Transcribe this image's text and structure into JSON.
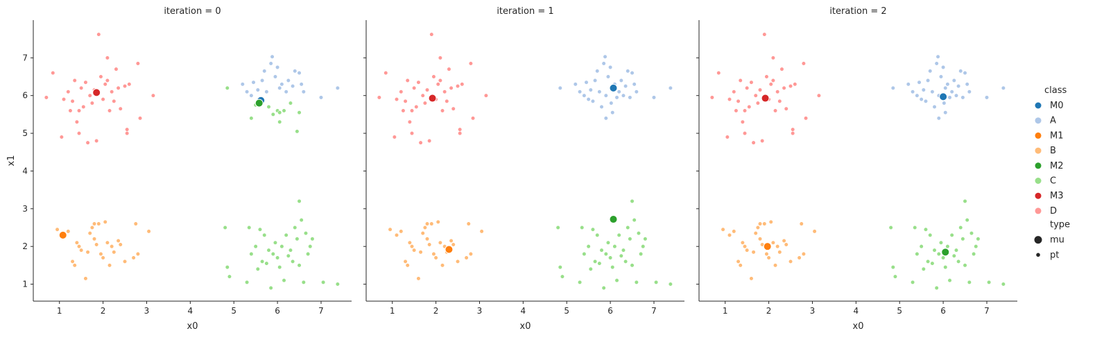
{
  "chart_data": {
    "type": "scatter",
    "xlabel": "x0",
    "ylabel": "x1",
    "xlim": [
      0.4,
      7.7
    ],
    "ylim": [
      0.55,
      8.0
    ],
    "xticks": [
      1,
      2,
      3,
      4,
      5,
      6,
      7
    ],
    "yticks": [
      1,
      2,
      3,
      4,
      5,
      6,
      7
    ],
    "grid": false,
    "legend_placement": "right",
    "colors": {
      "M0": "#1f77b4",
      "A": "#aec7e8",
      "M1": "#ff7f0e",
      "B": "#ffbb78",
      "M2": "#2ca02c",
      "C": "#98df8a",
      "M3": "#d62728",
      "D": "#ff9896"
    },
    "legend": {
      "class_title": "class",
      "classes": [
        "M0",
        "A",
        "M1",
        "B",
        "M2",
        "C",
        "M3",
        "D"
      ],
      "type_title": "type",
      "types": [
        "mu",
        "pt"
      ]
    },
    "points": {
      "A": [
        [
          5.2,
          6.3
        ],
        [
          5.3,
          6.1
        ],
        [
          5.4,
          6.0
        ],
        [
          5.45,
          6.35
        ],
        [
          5.5,
          5.9
        ],
        [
          5.55,
          6.15
        ],
        [
          5.6,
          5.85
        ],
        [
          5.65,
          6.4
        ],
        [
          5.7,
          6.65
        ],
        [
          5.75,
          6.1
        ],
        [
          5.8,
          5.7
        ],
        [
          5.85,
          6.85
        ],
        [
          5.88,
          7.03
        ],
        [
          5.9,
          6.0
        ],
        [
          5.95,
          6.5
        ],
        [
          6.0,
          6.75
        ],
        [
          6.02,
          5.8
        ],
        [
          6.05,
          6.2
        ],
        [
          6.1,
          6.3
        ],
        [
          6.15,
          5.95
        ],
        [
          6.2,
          6.1
        ],
        [
          6.25,
          6.4
        ],
        [
          6.3,
          6.0
        ],
        [
          6.35,
          6.25
        ],
        [
          6.4,
          6.65
        ],
        [
          6.45,
          5.95
        ],
        [
          6.5,
          6.6
        ],
        [
          6.55,
          6.3
        ],
        [
          6.6,
          6.1
        ],
        [
          7.0,
          5.95
        ],
        [
          7.38,
          6.2
        ],
        [
          5.9,
          5.4
        ],
        [
          6.05,
          5.55
        ],
        [
          4.85,
          6.2
        ]
      ],
      "B": [
        [
          0.95,
          2.45
        ],
        [
          1.1,
          2.3
        ],
        [
          1.2,
          2.4
        ],
        [
          1.3,
          1.6
        ],
        [
          1.35,
          1.5
        ],
        [
          1.4,
          2.1
        ],
        [
          1.45,
          2.0
        ],
        [
          1.5,
          1.9
        ],
        [
          1.6,
          1.15
        ],
        [
          1.65,
          1.85
        ],
        [
          1.7,
          2.35
        ],
        [
          1.75,
          2.5
        ],
        [
          1.8,
          2.2
        ],
        [
          1.85,
          2.05
        ],
        [
          1.9,
          2.6
        ],
        [
          1.95,
          1.8
        ],
        [
          2.0,
          1.7
        ],
        [
          2.05,
          2.65
        ],
        [
          2.1,
          2.1
        ],
        [
          2.15,
          1.5
        ],
        [
          2.2,
          2.0
        ],
        [
          2.25,
          1.85
        ],
        [
          2.35,
          2.15
        ],
        [
          2.4,
          2.05
        ],
        [
          2.5,
          1.6
        ],
        [
          2.7,
          1.7
        ],
        [
          2.75,
          2.6
        ],
        [
          2.8,
          1.8
        ],
        [
          3.05,
          2.4
        ],
        [
          1.8,
          2.6
        ]
      ],
      "C": [
        [
          4.8,
          2.5
        ],
        [
          4.85,
          1.45
        ],
        [
          4.9,
          1.2
        ],
        [
          5.3,
          1.05
        ],
        [
          5.35,
          2.5
        ],
        [
          5.4,
          1.8
        ],
        [
          5.5,
          2.0
        ],
        [
          5.55,
          1.4
        ],
        [
          5.6,
          2.45
        ],
        [
          5.65,
          1.6
        ],
        [
          5.7,
          2.3
        ],
        [
          5.75,
          1.55
        ],
        [
          5.8,
          1.9
        ],
        [
          5.85,
          0.9
        ],
        [
          5.9,
          1.8
        ],
        [
          5.95,
          2.1
        ],
        [
          6.0,
          1.7
        ],
        [
          6.05,
          1.45
        ],
        [
          6.1,
          2.0
        ],
        [
          6.15,
          1.1
        ],
        [
          6.2,
          2.3
        ],
        [
          6.25,
          1.75
        ],
        [
          6.3,
          1.9
        ],
        [
          6.35,
          1.6
        ],
        [
          6.4,
          2.5
        ],
        [
          6.45,
          2.2
        ],
        [
          6.5,
          3.2
        ],
        [
          6.55,
          2.7
        ],
        [
          6.6,
          1.05
        ],
        [
          6.65,
          2.35
        ],
        [
          6.7,
          1.8
        ],
        [
          6.75,
          2.0
        ],
        [
          6.8,
          2.2
        ],
        [
          7.05,
          1.05
        ],
        [
          7.38,
          1.0
        ],
        [
          6.5,
          1.5
        ]
      ],
      "D": [
        [
          0.7,
          5.95
        ],
        [
          0.85,
          6.6
        ],
        [
          1.05,
          4.9
        ],
        [
          1.1,
          5.9
        ],
        [
          1.2,
          6.1
        ],
        [
          1.25,
          5.6
        ],
        [
          1.3,
          5.85
        ],
        [
          1.35,
          6.4
        ],
        [
          1.4,
          5.3
        ],
        [
          1.45,
          5.0
        ],
        [
          1.5,
          6.2
        ],
        [
          1.55,
          5.7
        ],
        [
          1.6,
          6.35
        ],
        [
          1.65,
          4.75
        ],
        [
          1.7,
          6.0
        ],
        [
          1.75,
          5.8
        ],
        [
          1.8,
          6.15
        ],
        [
          1.85,
          4.8
        ],
        [
          1.9,
          7.62
        ],
        [
          1.95,
          6.5
        ],
        [
          2.0,
          5.9
        ],
        [
          2.05,
          6.3
        ],
        [
          2.1,
          7.0
        ],
        [
          2.15,
          5.6
        ],
        [
          2.2,
          6.1
        ],
        [
          2.25,
          5.85
        ],
        [
          2.3,
          6.7
        ],
        [
          2.35,
          6.2
        ],
        [
          2.4,
          5.65
        ],
        [
          2.5,
          6.25
        ],
        [
          2.55,
          5.1
        ],
        [
          2.6,
          6.3
        ],
        [
          2.8,
          6.85
        ],
        [
          2.85,
          5.4
        ],
        [
          3.15,
          6.0
        ],
        [
          2.55,
          5.0
        ],
        [
          1.45,
          5.6
        ],
        [
          2.1,
          6.4
        ]
      ]
    },
    "facets": [
      {
        "title": "iteration = 0",
        "mu": [
          {
            "class": "M0",
            "x": 5.62,
            "y": 5.87
          },
          {
            "class": "M1",
            "x": 1.08,
            "y": 2.3
          },
          {
            "class": "M2",
            "x": 5.58,
            "y": 5.8
          },
          {
            "class": "M3",
            "x": 1.85,
            "y": 6.08
          }
        ],
        "relabel": {
          "A": [
            [
              5.2,
              6.3
            ],
            [
              5.3,
              6.1
            ],
            [
              5.4,
              6.0
            ],
            [
              5.45,
              6.35
            ],
            [
              5.55,
              6.15
            ],
            [
              5.65,
              6.4
            ],
            [
              5.7,
              6.65
            ],
            [
              5.75,
              6.1
            ],
            [
              5.85,
              6.85
            ],
            [
              5.88,
              7.03
            ],
            [
              5.95,
              6.5
            ],
            [
              6.0,
              6.75
            ],
            [
              6.05,
              6.2
            ],
            [
              6.1,
              6.3
            ],
            [
              6.2,
              6.1
            ],
            [
              6.25,
              6.4
            ],
            [
              6.35,
              6.25
            ],
            [
              6.4,
              6.65
            ],
            [
              6.5,
              6.6
            ],
            [
              6.55,
              6.3
            ],
            [
              6.6,
              6.1
            ],
            [
              7.0,
              5.95
            ],
            [
              7.38,
              6.2
            ]
          ],
          "C_extra": [
            [
              5.4,
              5.4
            ],
            [
              5.5,
              5.75
            ],
            [
              5.8,
              5.7
            ],
            [
              5.9,
              5.5
            ],
            [
              6.0,
              5.6
            ],
            [
              6.05,
              5.3
            ],
            [
              6.15,
              5.6
            ],
            [
              6.45,
              5.05
            ],
            [
              4.85,
              6.2
            ],
            [
              6.3,
              5.8
            ],
            [
              6.5,
              5.55
            ],
            [
              6.05,
              5.55
            ]
          ]
        }
      },
      {
        "title": "iteration = 1",
        "mu": [
          {
            "class": "M0",
            "x": 6.07,
            "y": 6.2
          },
          {
            "class": "M1",
            "x": 2.3,
            "y": 1.92
          },
          {
            "class": "M2",
            "x": 6.07,
            "y": 2.72
          },
          {
            "class": "M3",
            "x": 1.92,
            "y": 5.93
          }
        ]
      },
      {
        "title": "iteration = 2",
        "mu": [
          {
            "class": "M0",
            "x": 6.0,
            "y": 5.97
          },
          {
            "class": "M1",
            "x": 1.97,
            "y": 2.0
          },
          {
            "class": "M2",
            "x": 6.05,
            "y": 1.85
          },
          {
            "class": "M3",
            "x": 1.92,
            "y": 5.93
          }
        ]
      }
    ]
  }
}
